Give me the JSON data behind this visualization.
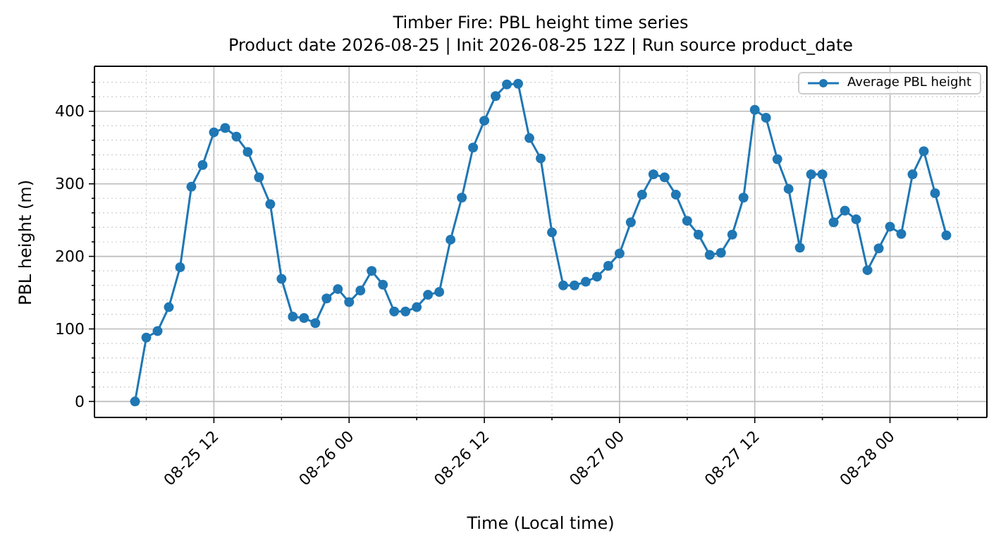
{
  "chart_data": {
    "type": "line",
    "title": "Timber Fire: PBL height time series",
    "subtitle": "Product date 2026-08-25 | Init 2026-08-25 12Z | Run source product_date",
    "xlabel": "Time (Local time)",
    "ylabel": "PBL height (m)",
    "x": [
      "2026-08-25T05:00",
      "2026-08-25T06:00",
      "2026-08-25T07:00",
      "2026-08-25T08:00",
      "2026-08-25T09:00",
      "2026-08-25T10:00",
      "2026-08-25T11:00",
      "2026-08-25T12:00",
      "2026-08-25T13:00",
      "2026-08-25T14:00",
      "2026-08-25T15:00",
      "2026-08-25T16:00",
      "2026-08-25T17:00",
      "2026-08-25T18:00",
      "2026-08-25T19:00",
      "2026-08-25T20:00",
      "2026-08-25T21:00",
      "2026-08-25T22:00",
      "2026-08-25T23:00",
      "2026-08-26T00:00",
      "2026-08-26T01:00",
      "2026-08-26T02:00",
      "2026-08-26T03:00",
      "2026-08-26T04:00",
      "2026-08-26T05:00",
      "2026-08-26T06:00",
      "2026-08-26T07:00",
      "2026-08-26T08:00",
      "2026-08-26T09:00",
      "2026-08-26T10:00",
      "2026-08-26T11:00",
      "2026-08-26T12:00",
      "2026-08-26T13:00",
      "2026-08-26T14:00",
      "2026-08-26T15:00",
      "2026-08-26T16:00",
      "2026-08-26T17:00",
      "2026-08-26T18:00",
      "2026-08-26T19:00",
      "2026-08-26T20:00",
      "2026-08-26T21:00",
      "2026-08-26T22:00",
      "2026-08-26T23:00",
      "2026-08-27T00:00",
      "2026-08-27T01:00",
      "2026-08-27T02:00",
      "2026-08-27T03:00",
      "2026-08-27T04:00",
      "2026-08-27T05:00",
      "2026-08-27T06:00",
      "2026-08-27T07:00",
      "2026-08-27T08:00",
      "2026-08-27T09:00",
      "2026-08-27T10:00",
      "2026-08-27T11:00",
      "2026-08-27T12:00",
      "2026-08-27T13:00",
      "2026-08-27T14:00",
      "2026-08-27T15:00",
      "2026-08-27T16:00",
      "2026-08-27T17:00",
      "2026-08-27T18:00",
      "2026-08-27T19:00",
      "2026-08-27T20:00",
      "2026-08-27T21:00",
      "2026-08-27T22:00",
      "2026-08-27T23:00",
      "2026-08-28T00:00",
      "2026-08-28T01:00",
      "2026-08-28T02:00",
      "2026-08-28T03:00",
      "2026-08-28T04:00",
      "2026-08-28T05:00"
    ],
    "series": [
      {
        "name": "Average PBL height",
        "color": "#1f77b4",
        "values": [
          0,
          88,
          97,
          130,
          185,
          296,
          326,
          371,
          377,
          365,
          344,
          309,
          272,
          169,
          117,
          115,
          108,
          142,
          155,
          137,
          153,
          180,
          161,
          124,
          124,
          130,
          147,
          151,
          223,
          281,
          350,
          387,
          421,
          437,
          438,
          363,
          335,
          233,
          160,
          160,
          165,
          172,
          187,
          204,
          247,
          285,
          313,
          309,
          285,
          249,
          230,
          202,
          205,
          230,
          281,
          402,
          391,
          334,
          293,
          212,
          313,
          313,
          247,
          263,
          251,
          181,
          211,
          241,
          231,
          313,
          345,
          287,
          229
        ]
      }
    ],
    "xlim": [
      "2026-08-25T01:24",
      "2026-08-28T08:36"
    ],
    "xticks": [
      {
        "value": "2026-08-25T06:00",
        "label": null
      },
      {
        "value": "2026-08-25T12:00",
        "label": "08-25 12"
      },
      {
        "value": "2026-08-25T18:00",
        "label": null
      },
      {
        "value": "2026-08-26T00:00",
        "label": "08-26 00"
      },
      {
        "value": "2026-08-26T06:00",
        "label": null
      },
      {
        "value": "2026-08-26T12:00",
        "label": "08-26 12"
      },
      {
        "value": "2026-08-26T18:00",
        "label": null
      },
      {
        "value": "2026-08-27T00:00",
        "label": "08-27 00"
      },
      {
        "value": "2026-08-27T06:00",
        "label": null
      },
      {
        "value": "2026-08-27T12:00",
        "label": "08-27 12"
      },
      {
        "value": "2026-08-27T18:00",
        "label": null
      },
      {
        "value": "2026-08-28T00:00",
        "label": "08-28 00"
      },
      {
        "value": "2026-08-28T06:00",
        "label": null
      }
    ],
    "ylim": [
      -22,
      462
    ],
    "yticks": [
      0,
      {
        "value": 20,
        "label": null
      },
      {
        "value": 40,
        "label": null
      },
      {
        "value": 60,
        "label": null
      },
      {
        "value": 80,
        "label": null
      },
      100,
      {
        "value": 120,
        "label": null
      },
      {
        "value": 140,
        "label": null
      },
      {
        "value": 160,
        "label": null
      },
      {
        "value": 180,
        "label": null
      },
      200,
      {
        "value": 220,
        "label": null
      },
      {
        "value": 240,
        "label": null
      },
      {
        "value": 260,
        "label": null
      },
      {
        "value": 280,
        "label": null
      },
      300,
      {
        "value": 320,
        "label": null
      },
      {
        "value": 340,
        "label": null
      },
      {
        "value": 360,
        "label": null
      },
      {
        "value": 380,
        "label": null
      },
      400,
      {
        "value": 420,
        "label": null
      },
      {
        "value": 440,
        "label": null
      }
    ],
    "grid": true,
    "legend": "top right",
    "marker": "circle",
    "line_style": "solid"
  }
}
